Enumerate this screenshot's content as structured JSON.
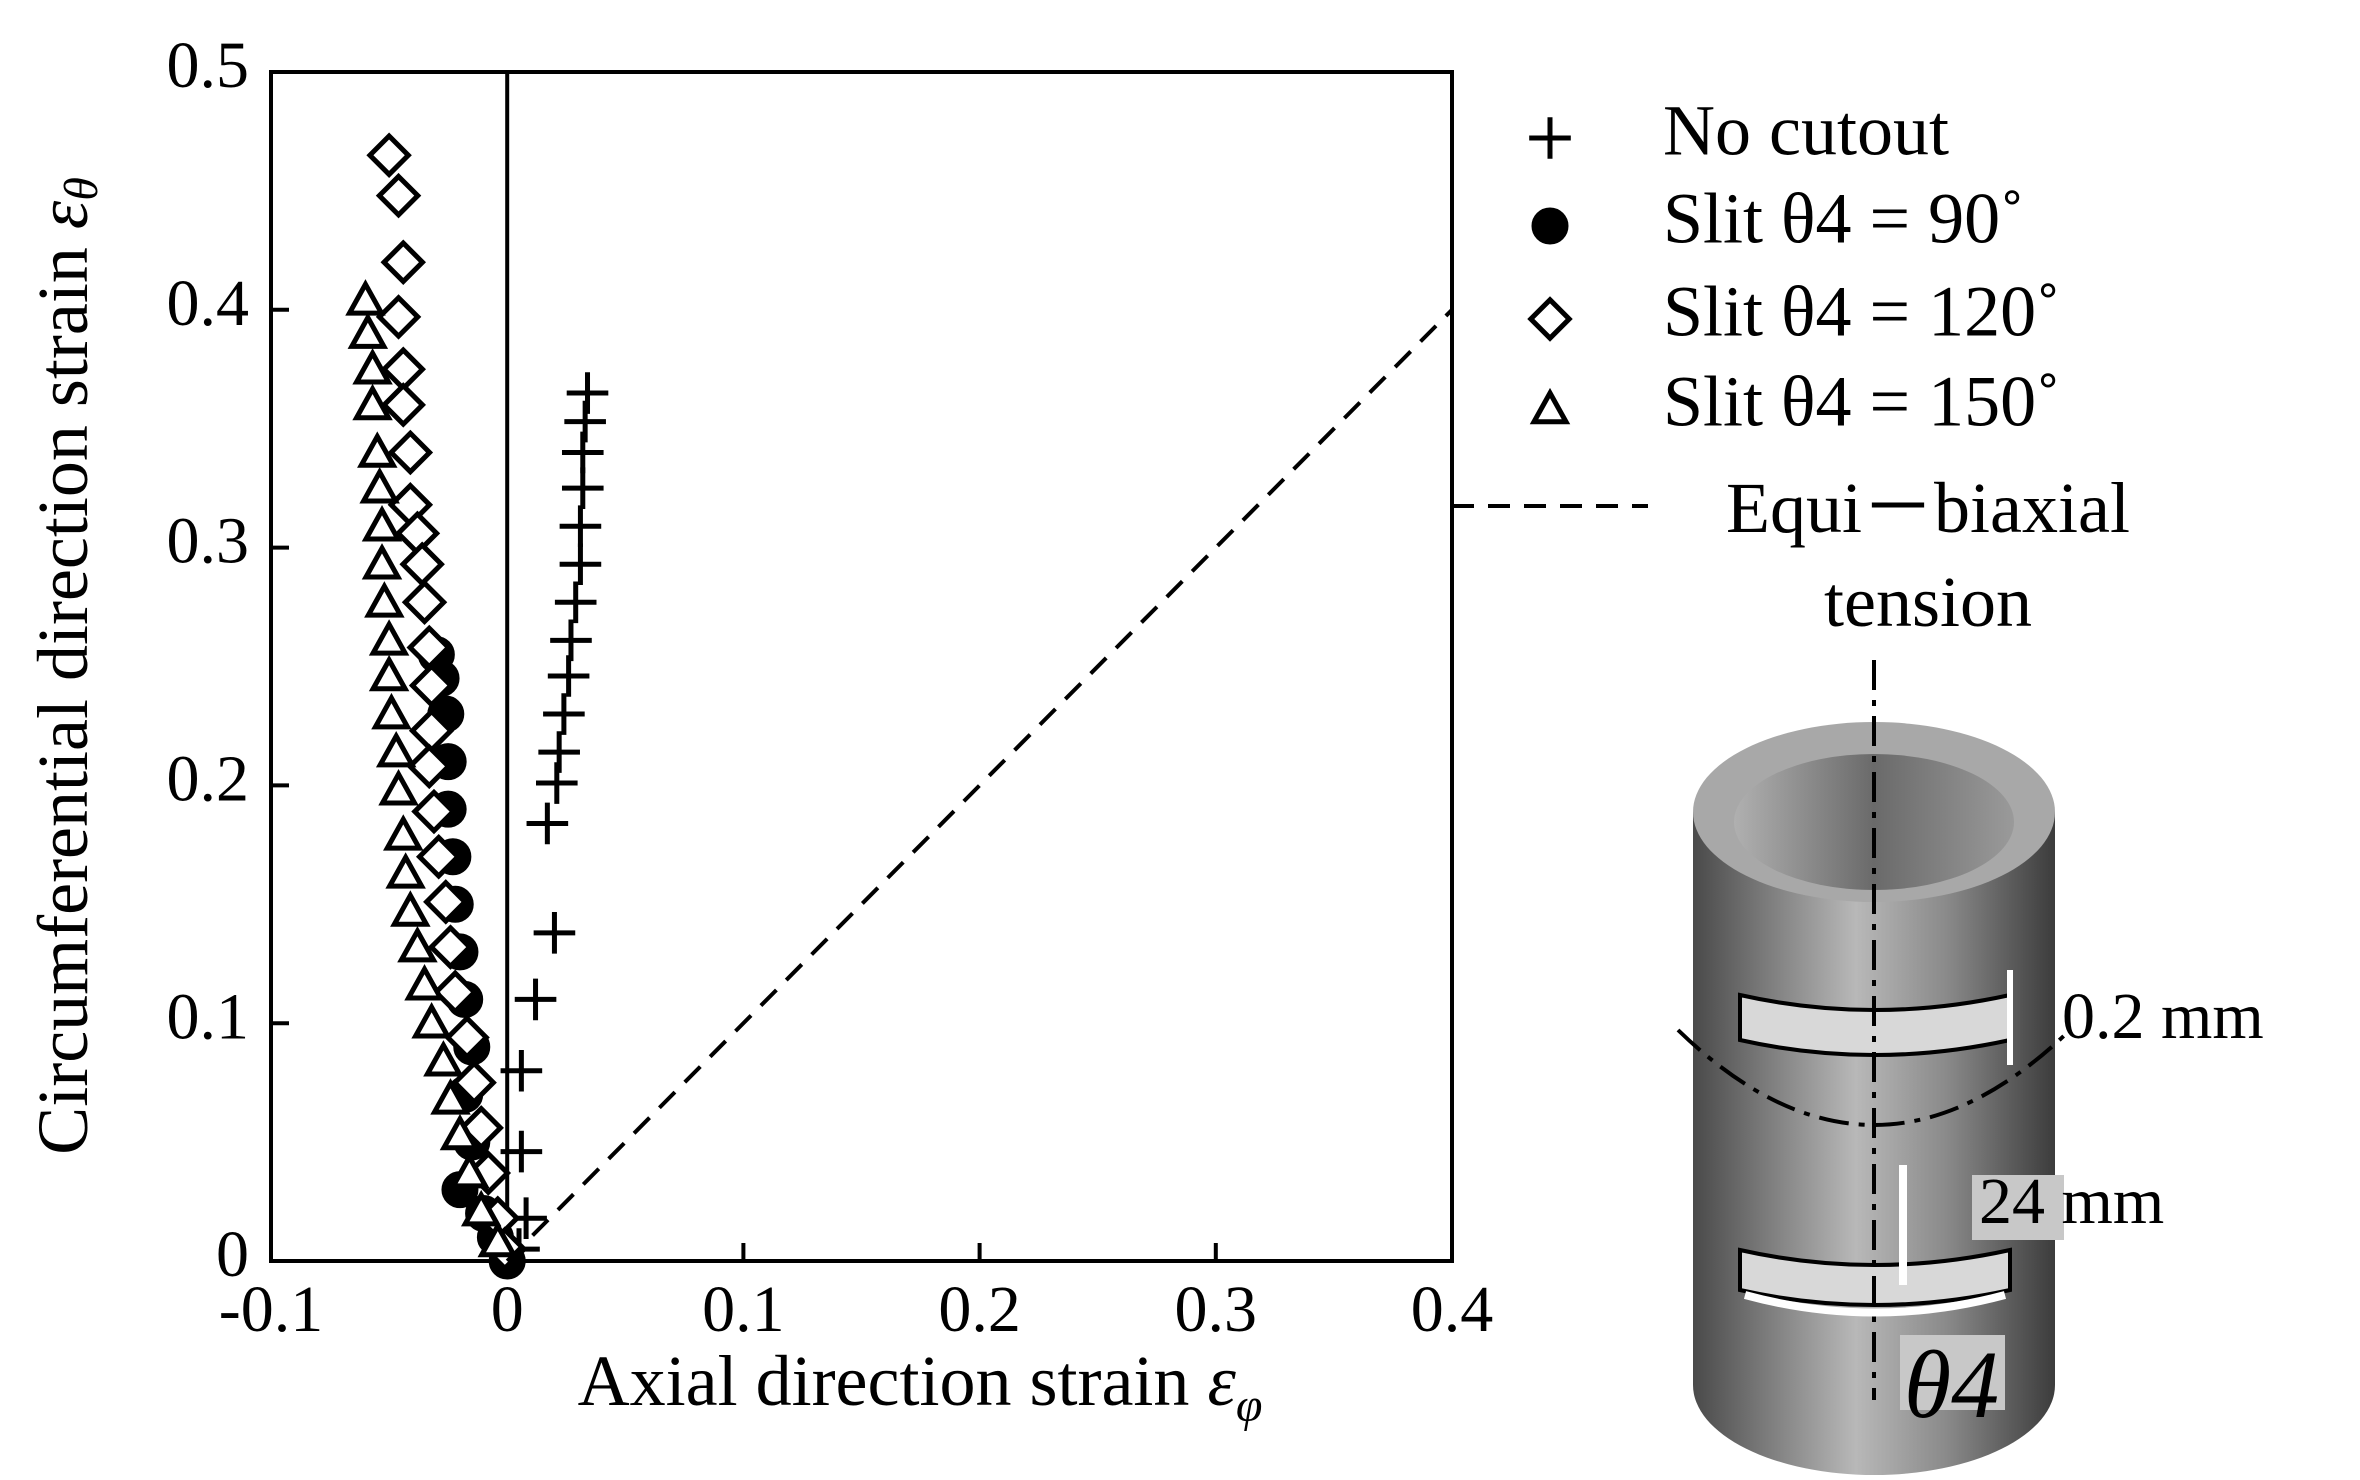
{
  "chart_data": {
    "type": "scatter",
    "ylabel": "Circumferential direction strain",
    "ylabel_symbol": "ε",
    "ylabel_subscript": "θ",
    "xlabel": "Axial direction strain",
    "xlabel_symbol": "ε",
    "xlabel_subscript": "φ",
    "xlim": [
      -0.1,
      0.4
    ],
    "ylim": [
      0,
      0.5
    ],
    "xticks": [
      -0.1,
      0,
      0.1,
      0.2,
      0.3,
      0.4
    ],
    "yticks": [
      0,
      0.1,
      0.2,
      0.3,
      0.4,
      0.5
    ],
    "series": [
      {
        "name": "No cutout",
        "color": "#000000",
        "marker": "plus",
        "x": [
          0.005,
          0.008,
          0.006,
          0.006,
          0.012,
          0.02,
          0.017,
          0.021,
          0.022,
          0.024,
          0.026,
          0.027,
          0.029,
          0.031,
          0.031,
          0.032,
          0.032,
          0.033,
          0.034
        ],
        "values": [
          0.005,
          0.018,
          0.046,
          0.08,
          0.11,
          0.138,
          0.184,
          0.201,
          0.214,
          0.23,
          0.246,
          0.261,
          0.277,
          0.293,
          0.309,
          0.325,
          0.34,
          0.353,
          0.365
        ]
      },
      {
        "name": "Slit  θ4 = 90˚",
        "color": "#000000",
        "marker": "circle",
        "x": [
          0,
          -0.005,
          -0.01,
          -0.02,
          -0.015,
          -0.018,
          -0.015,
          -0.018,
          -0.02,
          -0.022,
          -0.023,
          -0.025,
          -0.025,
          -0.026,
          -0.028,
          -0.03
        ],
        "values": [
          0,
          0.01,
          0.02,
          0.03,
          0.05,
          0.07,
          0.09,
          0.11,
          0.13,
          0.15,
          0.17,
          0.19,
          0.21,
          0.23,
          0.245,
          0.255
        ]
      },
      {
        "name": "Slit  θ4 = 120˚",
        "color": "#000000",
        "marker": "diamond",
        "x": [
          -0.05,
          -0.046,
          -0.044,
          -0.046,
          -0.044,
          -0.044,
          -0.041,
          -0.041,
          -0.038,
          -0.036,
          -0.035,
          -0.033,
          -0.032,
          -0.032,
          -0.033,
          -0.031,
          -0.029,
          -0.026,
          -0.024,
          -0.022,
          -0.017,
          -0.014,
          -0.011,
          -0.008,
          -0.004,
          -0.001
        ],
        "values": [
          0.465,
          0.448,
          0.42,
          0.397,
          0.375,
          0.36,
          0.34,
          0.318,
          0.306,
          0.293,
          0.277,
          0.258,
          0.242,
          0.223,
          0.208,
          0.189,
          0.17,
          0.151,
          0.132,
          0.113,
          0.094,
          0.075,
          0.056,
          0.037,
          0.018,
          0.005
        ]
      },
      {
        "name": "Slit  θ4 = 150˚",
        "color": "#000000",
        "marker": "triangle",
        "x": [
          -0.06,
          -0.059,
          -0.057,
          -0.057,
          -0.055,
          -0.054,
          -0.053,
          -0.053,
          -0.052,
          -0.05,
          -0.05,
          -0.049,
          -0.047,
          -0.046,
          -0.044,
          -0.043,
          -0.041,
          -0.038,
          -0.035,
          -0.032,
          -0.027,
          -0.024,
          -0.02,
          -0.016,
          -0.011,
          -0.004
        ],
        "values": [
          0.404,
          0.39,
          0.375,
          0.36,
          0.34,
          0.325,
          0.309,
          0.293,
          0.277,
          0.261,
          0.246,
          0.23,
          0.214,
          0.198,
          0.179,
          0.163,
          0.147,
          0.132,
          0.116,
          0.1,
          0.084,
          0.068,
          0.053,
          0.037,
          0.021,
          0.008
        ]
      },
      {
        "name": "Equi－biaxial tension",
        "color": "#000000",
        "marker": "none",
        "line": "dashed",
        "x": [
          0,
          0.4
        ],
        "values": [
          0,
          0.4
        ]
      }
    ],
    "annotations": [
      "0.2 mm",
      "24 mm",
      "θ4"
    ]
  }
}
